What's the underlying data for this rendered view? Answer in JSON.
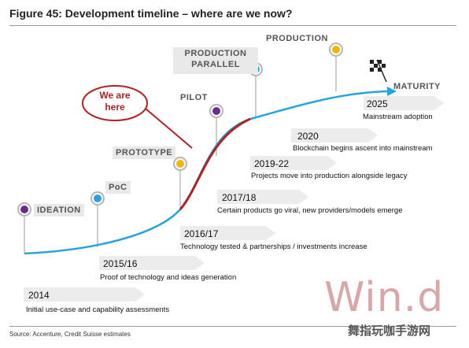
{
  "figure": {
    "title": "Figure 45: Development timeline – where are we now?",
    "source": "Source: Accenture, Credit Suisse estimates"
  },
  "stages": [
    {
      "label": "IDEATION",
      "color": "#6b2d8c"
    },
    {
      "label": "PoC",
      "color": "#29a3e0"
    },
    {
      "label": "PROTOTYPE",
      "color": "#f2b705"
    },
    {
      "label": "PILOT",
      "color": "#6b2d8c"
    },
    {
      "label_line1": "PRODUCTION",
      "label_line2": "PARALLEL",
      "color": "#29a3e0"
    },
    {
      "label": "PRODUCTION",
      "color": "#f2b705"
    },
    {
      "label": "MATURITY"
    }
  ],
  "callout": {
    "line1": "We are",
    "line2": "here",
    "color": "#b22222"
  },
  "milestones": [
    {
      "year": "2025",
      "description": "Mainstream adoption"
    },
    {
      "year": "2020",
      "description": "Blockchain begins ascent into mainstream"
    },
    {
      "year": "2019-22",
      "description": "Projects move into production alongside legacy"
    },
    {
      "year": "2017/18",
      "description": "Certain products go viral, new providers/models emerge"
    },
    {
      "year": "2016/17",
      "description": "Technology tested & partnerships / investments increase"
    },
    {
      "year": "2015/16",
      "description": "Proof of technology and ideas generation"
    },
    {
      "year": "2014",
      "description": "Initial use-case and capability assessments"
    }
  ],
  "watermark": {
    "text": "Win.d",
    "subtext": "舞指玩咖手游网"
  },
  "colors": {
    "curve": "#29a3e0",
    "highlight": "#b22222",
    "arrow_fill": "#ececec"
  }
}
